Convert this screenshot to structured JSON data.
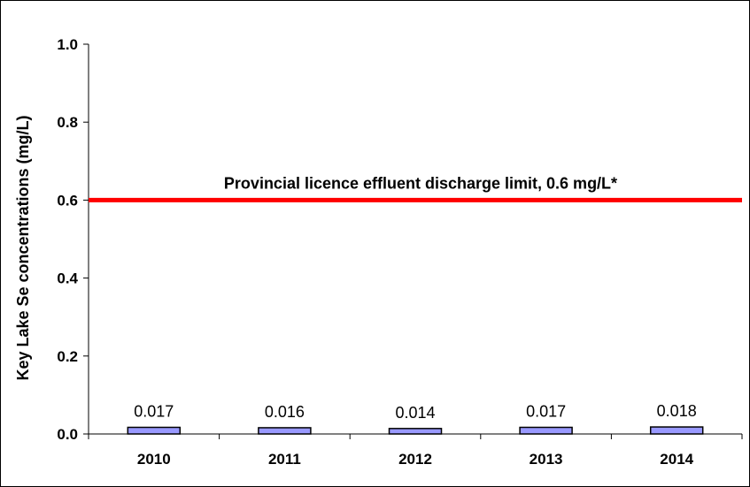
{
  "chart_data": {
    "type": "bar",
    "categories": [
      "2010",
      "2011",
      "2012",
      "2013",
      "2014"
    ],
    "values": [
      0.017,
      0.016,
      0.014,
      0.017,
      0.018
    ],
    "data_labels": [
      "0.017",
      "0.016",
      "0.014",
      "0.017",
      "0.018"
    ],
    "ylabel": "Key Lake Se concentrations (mg/L)",
    "xlabel": "",
    "ylim": [
      0,
      1.0
    ],
    "yticks": [
      0.0,
      0.2,
      0.4,
      0.6,
      0.8,
      1.0
    ],
    "ytick_labels": [
      "0.0",
      "0.2",
      "0.4",
      "0.6",
      "0.8",
      "1.0"
    ],
    "grid": false,
    "bar_color": "#9999ff",
    "reference_line": {
      "value": 0.6,
      "label": "Provincial licence effluent discharge limit, 0.6 mg/L*",
      "color": "#ff0000"
    }
  }
}
